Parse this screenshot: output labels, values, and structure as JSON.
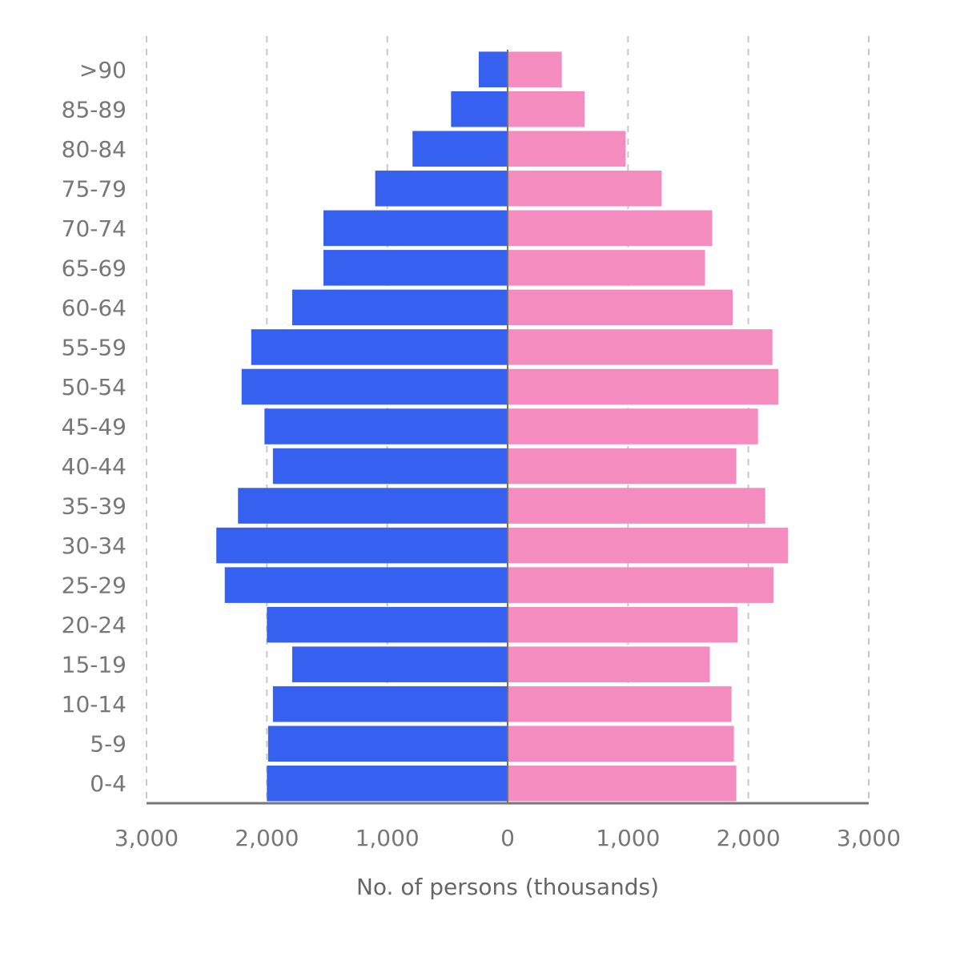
{
  "chart_data": {
    "type": "bar",
    "orientation": "horizontal",
    "layout": "population-pyramid",
    "categories": [
      "0-4",
      "5-9",
      "10-14",
      "15-19",
      "20-24",
      "25-29",
      "30-34",
      "35-39",
      "40-44",
      "45-49",
      "50-54",
      "55-59",
      "60-64",
      "65-69",
      "70-74",
      "75-79",
      "80-84",
      "85-89",
      ">90"
    ],
    "category_labels": [
      "0-4",
      "5-9",
      "10-14",
      "15-19",
      "20-24",
      "25-29",
      "30-34",
      "35-39",
      "40-44",
      "45-49",
      "50-54",
      "55-59",
      "60-64",
      "65-69",
      "70-74",
      "75-79",
      "80-84",
      "85-89",
      ">90"
    ],
    "series": [
      {
        "side": "left",
        "color": "#3560f0",
        "values": [
          2000,
          1990,
          1950,
          1790,
          2000,
          2350,
          2420,
          2240,
          1950,
          2020,
          2210,
          2130,
          1790,
          1530,
          1530,
          1100,
          790,
          470,
          240
        ]
      },
      {
        "side": "right",
        "color": "#f48cc0",
        "values": [
          1900,
          1880,
          1860,
          1680,
          1910,
          2210,
          2330,
          2140,
          1900,
          2080,
          2250,
          2200,
          1870,
          1640,
          1700,
          1280,
          980,
          640,
          450
        ]
      }
    ],
    "xlim": [
      -3000,
      3000
    ],
    "x_tick_values": [
      -3000,
      -2000,
      -1000,
      0,
      1000,
      2000,
      3000
    ],
    "x_tick_labels": [
      "3,000",
      "2,000",
      "1,000",
      "0",
      "1,000",
      "2,000",
      "3,000"
    ],
    "xlabel": "No. of persons (thousands)",
    "ylabel": "",
    "title": "",
    "grid": "vertical-dashed",
    "legend": "none"
  }
}
